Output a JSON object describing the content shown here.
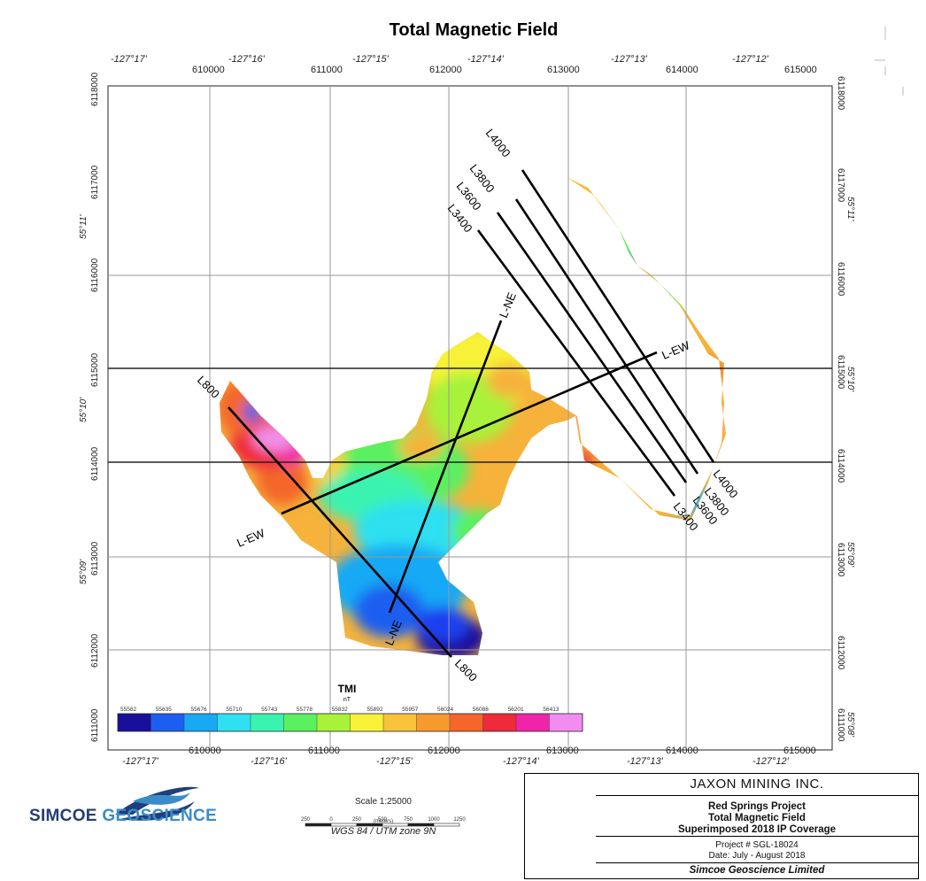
{
  "title": "Total Magnetic Field",
  "grid": {
    "easting_labels": [
      "610000",
      "611000",
      "612000",
      "613000",
      "614000",
      "615000"
    ],
    "northing_labels": [
      "6118000",
      "6117000",
      "6116000",
      "6115000",
      "6114000",
      "6113000",
      "6112000",
      "6111000"
    ],
    "top_longitudes": [
      "-127°17'",
      "-127°16'",
      "-127°15'",
      "-127°14'",
      "-127°13'",
      "-127°12'"
    ],
    "bottom_longitudes": [
      "-127°17'",
      "-127°16'",
      "-127°15'",
      "-127°14'",
      "-127°13'",
      "-127°12'"
    ],
    "left_latitudes": [
      "55°11'",
      "55°10'",
      "55°09'"
    ],
    "right_latitudes": [
      "55°11'",
      "55°10'",
      "55°09'",
      "55°08'"
    ]
  },
  "survey_lines": [
    {
      "label": "L4000"
    },
    {
      "label": "L3800"
    },
    {
      "label": "L3600"
    },
    {
      "label": "L3400"
    },
    {
      "label": "L800"
    },
    {
      "label": "L-NE"
    },
    {
      "label": "L-EW"
    }
  ],
  "legend": {
    "title": "TMI",
    "unit": "nT",
    "ticks": [
      "55582",
      "55635",
      "55676",
      "55710",
      "55743",
      "55778",
      "55832",
      "55892",
      "55957",
      "56024",
      "56088",
      "56201",
      "56413"
    ],
    "colors": [
      "#1a0f9c",
      "#1c5ff0",
      "#18a9f5",
      "#2ee0f0",
      "#3af3b0",
      "#5af060",
      "#a8f23a",
      "#f7f238",
      "#f8c23a",
      "#f79a2e",
      "#f4662a",
      "#ef2a3a",
      "#f024a8",
      "#f28cf0"
    ]
  },
  "scale": {
    "title": "Scale 1:25000",
    "ticks": [
      "250",
      "0",
      "250",
      "500",
      "750",
      "1000",
      "1250"
    ],
    "units": "(meters)",
    "projection": "WGS 84 / UTM zone 9N"
  },
  "logo": {
    "word1": "SIMCOE",
    "word2": "GEOSCIENCE"
  },
  "title_block": {
    "company": "JAXON MINING INC.",
    "line1": "Red Springs Project",
    "line2": "Total Magnetic Field",
    "line3": "Superimposed 2018 IP Coverage",
    "project": "Project # SGL-18024",
    "date": "Date: July - August 2018",
    "footer": "Simcoe Geoscience Limited"
  }
}
